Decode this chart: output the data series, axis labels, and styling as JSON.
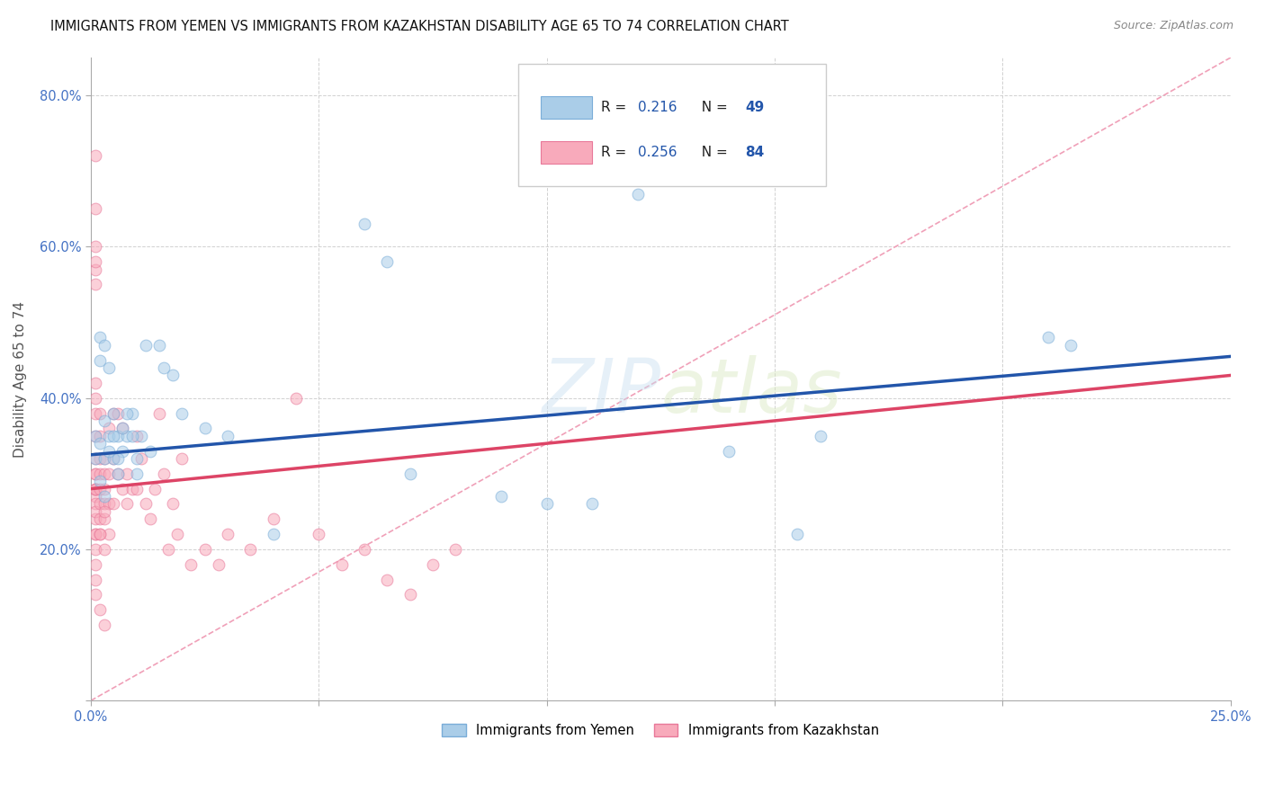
{
  "title": "IMMIGRANTS FROM YEMEN VS IMMIGRANTS FROM KAZAKHSTAN DISABILITY AGE 65 TO 74 CORRELATION CHART",
  "source": "Source: ZipAtlas.com",
  "ylabel": "Disability Age 65 to 74",
  "xlim": [
    0.0,
    0.25
  ],
  "ylim": [
    0.0,
    0.85
  ],
  "watermark": "ZIPatlas",
  "yemen_R": 0.216,
  "yemen_N": 49,
  "kazakhstan_R": 0.256,
  "kazakhstan_N": 84,
  "yemen_color": "#aacde8",
  "yemen_edge": "#7aadd8",
  "yemen_trend": "#2255aa",
  "kazakhstan_color": "#f8aabb",
  "kazakhstan_edge": "#e87899",
  "kazakhstan_trend": "#dd4466",
  "diag_color": "#f0a0b8",
  "background": "#ffffff",
  "grid_color": "#cccccc",
  "legend_R_color": "#2255aa",
  "legend_N_color": "#2255aa",
  "yemen_trend_x0": 0.0,
  "yemen_trend_y0": 0.325,
  "yemen_trend_x1": 0.25,
  "yemen_trend_y1": 0.455,
  "kaz_trend_x0": 0.0,
  "kaz_trend_y0": 0.28,
  "kaz_trend_x1": 0.25,
  "kaz_trend_y1": 0.43,
  "yemen_x": [
    0.001,
    0.001,
    0.002,
    0.002,
    0.002,
    0.003,
    0.003,
    0.003,
    0.004,
    0.004,
    0.005,
    0.005,
    0.006,
    0.006,
    0.007,
    0.008,
    0.009,
    0.01,
    0.011,
    0.012,
    0.013,
    0.015,
    0.016,
    0.018,
    0.02,
    0.025,
    0.03,
    0.04,
    0.06,
    0.065,
    0.07,
    0.09,
    0.1,
    0.11,
    0.12,
    0.14,
    0.155,
    0.16,
    0.21,
    0.215,
    0.002,
    0.003,
    0.004,
    0.005,
    0.006,
    0.007,
    0.008,
    0.009,
    0.01
  ],
  "yemen_y": [
    0.35,
    0.32,
    0.48,
    0.45,
    0.34,
    0.47,
    0.37,
    0.32,
    0.44,
    0.35,
    0.32,
    0.38,
    0.35,
    0.3,
    0.33,
    0.35,
    0.38,
    0.3,
    0.35,
    0.47,
    0.33,
    0.47,
    0.44,
    0.43,
    0.38,
    0.36,
    0.35,
    0.22,
    0.63,
    0.58,
    0.3,
    0.27,
    0.26,
    0.26,
    0.67,
    0.33,
    0.22,
    0.35,
    0.48,
    0.47,
    0.29,
    0.27,
    0.33,
    0.35,
    0.32,
    0.36,
    0.38,
    0.35,
    0.32
  ],
  "kaz_x": [
    0.001,
    0.001,
    0.001,
    0.001,
    0.001,
    0.001,
    0.001,
    0.001,
    0.001,
    0.001,
    0.001,
    0.001,
    0.001,
    0.001,
    0.001,
    0.001,
    0.001,
    0.001,
    0.001,
    0.001,
    0.002,
    0.002,
    0.002,
    0.002,
    0.002,
    0.002,
    0.002,
    0.002,
    0.003,
    0.003,
    0.003,
    0.003,
    0.003,
    0.003,
    0.004,
    0.004,
    0.004,
    0.004,
    0.005,
    0.005,
    0.005,
    0.006,
    0.006,
    0.007,
    0.007,
    0.008,
    0.008,
    0.009,
    0.01,
    0.01,
    0.011,
    0.012,
    0.013,
    0.014,
    0.015,
    0.016,
    0.017,
    0.018,
    0.019,
    0.02,
    0.022,
    0.025,
    0.028,
    0.03,
    0.035,
    0.04,
    0.045,
    0.05,
    0.055,
    0.06,
    0.065,
    0.07,
    0.075,
    0.08,
    0.001,
    0.001,
    0.001,
    0.001,
    0.001,
    0.001,
    0.002,
    0.002,
    0.003,
    0.003
  ],
  "kaz_y": [
    0.27,
    0.26,
    0.28,
    0.3,
    0.22,
    0.2,
    0.24,
    0.18,
    0.16,
    0.14,
    0.22,
    0.25,
    0.28,
    0.32,
    0.35,
    0.38,
    0.4,
    0.42,
    0.28,
    0.3,
    0.26,
    0.28,
    0.3,
    0.22,
    0.24,
    0.32,
    0.35,
    0.38,
    0.3,
    0.28,
    0.32,
    0.26,
    0.24,
    0.2,
    0.36,
    0.3,
    0.26,
    0.22,
    0.38,
    0.32,
    0.26,
    0.38,
    0.3,
    0.36,
    0.28,
    0.3,
    0.26,
    0.28,
    0.35,
    0.28,
    0.32,
    0.26,
    0.24,
    0.28,
    0.38,
    0.3,
    0.2,
    0.26,
    0.22,
    0.32,
    0.18,
    0.2,
    0.18,
    0.22,
    0.2,
    0.24,
    0.4,
    0.22,
    0.18,
    0.2,
    0.16,
    0.14,
    0.18,
    0.2,
    0.6,
    0.57,
    0.58,
    0.55,
    0.72,
    0.65,
    0.12,
    0.22,
    0.25,
    0.1
  ]
}
